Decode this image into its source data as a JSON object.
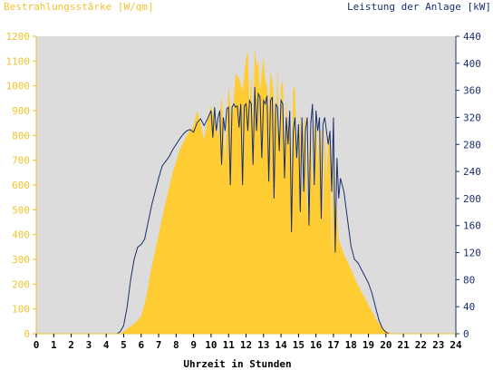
{
  "chart_data": {
    "type": "area",
    "ylabel": "Bestrahlungsstärke [W/qm]",
    "y2label": "Leistung der Anlage [kW]",
    "xlabel": "Uhrzeit in Stunden",
    "xlim": [
      0,
      24
    ],
    "ylim": [
      0,
      1200
    ],
    "y2lim": [
      0,
      440
    ],
    "x_ticks": [
      "0",
      "1",
      "2",
      "3",
      "4",
      "5",
      "6",
      "7",
      "8",
      "9",
      "10",
      "11",
      "12",
      "13",
      "14",
      "15",
      "16",
      "17",
      "18",
      "19",
      "20",
      "21",
      "22",
      "23",
      "24"
    ],
    "y_ticks": [
      "0",
      "100",
      "200",
      "300",
      "400",
      "500",
      "600",
      "700",
      "800",
      "900",
      "1000",
      "1100",
      "1200"
    ],
    "y2_ticks": [
      "0",
      "40",
      "80",
      "120",
      "160",
      "200",
      "240",
      "280",
      "320",
      "360",
      "400",
      "440"
    ],
    "grid": false,
    "colors": {
      "plot_background": "#dcdcdc",
      "irradiance_fill": "#ffcc33",
      "power_line": "#1b2f6e",
      "left_axis": "#f2c230",
      "right_axis": "#1b2f6e"
    },
    "series": [
      {
        "name": "Bestrahlungsstärke [W/qm]",
        "kind": "area",
        "axis": "left",
        "x": [
          0,
          4.8,
          5.0,
          5.3,
          5.6,
          6.0,
          6.3,
          6.6,
          7.0,
          7.4,
          7.8,
          8.2,
          8.6,
          9.0,
          9.2,
          9.4,
          9.6,
          9.8,
          10.0,
          10.2,
          10.4,
          10.6,
          10.8,
          11.0,
          11.2,
          11.4,
          11.6,
          11.8,
          12.0,
          12.1,
          12.2,
          12.3,
          12.4,
          12.5,
          12.6,
          12.7,
          12.8,
          12.9,
          13.0,
          13.1,
          13.2,
          13.3,
          13.4,
          13.5,
          13.6,
          13.7,
          13.8,
          13.9,
          14.0,
          14.1,
          14.2,
          14.3,
          14.4,
          14.5,
          14.6,
          14.7,
          14.8,
          14.9,
          15.0,
          15.1,
          15.2,
          15.3,
          15.4,
          15.5,
          15.6,
          15.7,
          15.8,
          15.9,
          16.0,
          16.1,
          16.2,
          16.3,
          16.4,
          16.5,
          16.6,
          16.7,
          16.8,
          16.9,
          17.0,
          17.1,
          17.2,
          17.3,
          17.4,
          17.6,
          17.8,
          18.0,
          18.3,
          18.6,
          18.9,
          19.2,
          19.5,
          19.8,
          20.0,
          20.2,
          20.4,
          24
        ],
        "values": [
          0,
          0,
          10,
          25,
          40,
          70,
          150,
          270,
          400,
          530,
          650,
          740,
          800,
          840,
          900,
          850,
          780,
          870,
          920,
          860,
          800,
          960,
          700,
          1000,
          850,
          1050,
          1030,
          980,
          1110,
          1140,
          900,
          1050,
          820,
          1150,
          1080,
          1100,
          980,
          1050,
          1120,
          1020,
          1000,
          880,
          1060,
          1020,
          940,
          800,
          1080,
          700,
          1000,
          1020,
          750,
          940,
          820,
          900,
          650,
          1000,
          980,
          700,
          720,
          900,
          520,
          840,
          880,
          450,
          700,
          870,
          560,
          820,
          880,
          660,
          820,
          820,
          460,
          840,
          620,
          800,
          760,
          300,
          800,
          520,
          500,
          380,
          360,
          320,
          290,
          260,
          210,
          170,
          130,
          90,
          50,
          25,
          10,
          5,
          0,
          0
        ]
      },
      {
        "name": "Leistung der Anlage [kW]",
        "kind": "line",
        "axis": "right",
        "x": [
          0,
          4.6,
          4.8,
          5.0,
          5.2,
          5.4,
          5.6,
          5.8,
          6.0,
          6.2,
          6.4,
          6.6,
          6.8,
          7.0,
          7.2,
          7.4,
          7.6,
          7.8,
          8.0,
          8.2,
          8.4,
          8.6,
          8.8,
          9.0,
          9.2,
          9.4,
          9.6,
          9.8,
          10.0,
          10.1,
          10.2,
          10.3,
          10.4,
          10.5,
          10.6,
          10.7,
          10.8,
          10.9,
          11.0,
          11.1,
          11.2,
          11.3,
          11.4,
          11.5,
          11.6,
          11.7,
          11.8,
          11.9,
          12.0,
          12.1,
          12.2,
          12.3,
          12.4,
          12.5,
          12.6,
          12.7,
          12.8,
          12.9,
          13.0,
          13.1,
          13.2,
          13.3,
          13.4,
          13.5,
          13.6,
          13.7,
          13.8,
          13.9,
          14.0,
          14.1,
          14.2,
          14.3,
          14.4,
          14.5,
          14.6,
          14.7,
          14.8,
          14.9,
          15.0,
          15.1,
          15.2,
          15.3,
          15.4,
          15.5,
          15.6,
          15.7,
          15.8,
          15.9,
          16.0,
          16.1,
          16.2,
          16.3,
          16.4,
          16.5,
          16.6,
          16.7,
          16.8,
          16.9,
          17.0,
          17.1,
          17.2,
          17.3,
          17.4,
          17.5,
          17.6,
          17.8,
          18.0,
          18.2,
          18.4,
          18.6,
          18.8,
          19.0,
          19.2,
          19.4,
          19.6,
          19.8,
          20.0,
          20.2,
          20.4,
          24
        ],
        "values": [
          0,
          0,
          3,
          12,
          40,
          80,
          110,
          128,
          132,
          140,
          165,
          190,
          210,
          230,
          248,
          255,
          262,
          272,
          280,
          288,
          295,
          300,
          302,
          298,
          312,
          318,
          308,
          318,
          330,
          290,
          335,
          300,
          320,
          330,
          250,
          320,
          300,
          333,
          335,
          220,
          335,
          340,
          335,
          337,
          305,
          340,
          220,
          337,
          340,
          300,
          345,
          340,
          250,
          365,
          300,
          355,
          350,
          260,
          345,
          340,
          352,
          225,
          345,
          350,
          200,
          340,
          335,
          270,
          345,
          340,
          230,
          320,
          280,
          330,
          150,
          300,
          320,
          260,
          310,
          180,
          320,
          210,
          300,
          320,
          160,
          310,
          340,
          220,
          330,
          300,
          320,
          170,
          310,
          320,
          300,
          280,
          300,
          210,
          320,
          120,
          260,
          200,
          230,
          220,
          210,
          170,
          130,
          110,
          105,
          95,
          85,
          75,
          60,
          40,
          20,
          8,
          2,
          0,
          0,
          0
        ]
      }
    ]
  }
}
